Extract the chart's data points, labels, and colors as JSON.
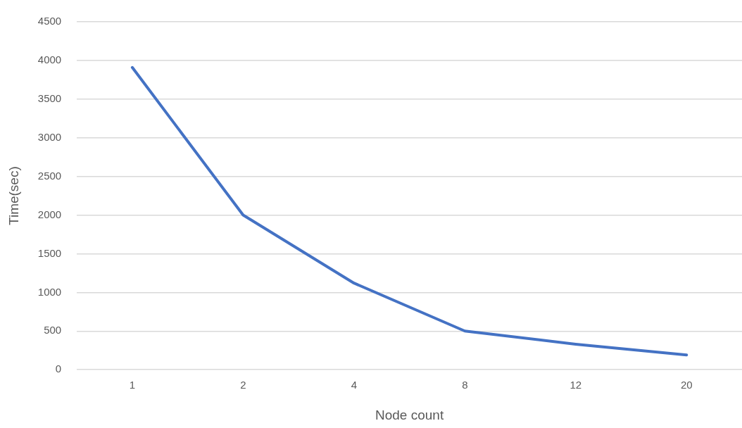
{
  "chart_data": {
    "type": "line",
    "xlabel": "Node count",
    "ylabel": "Time(sec)",
    "categories": [
      "1",
      "2",
      "4",
      "8",
      "12",
      "20"
    ],
    "series": [
      {
        "color": "#4472c4",
        "values": [
          3910,
          2000,
          1120,
          500,
          330,
          190
        ]
      }
    ],
    "ylim": [
      0,
      4500
    ],
    "yticks": [
      0,
      500,
      1000,
      1500,
      2000,
      2500,
      3000,
      3500,
      4000,
      4500
    ],
    "grid": "y",
    "legend": false,
    "marker": "none",
    "line_style": "solid"
  }
}
